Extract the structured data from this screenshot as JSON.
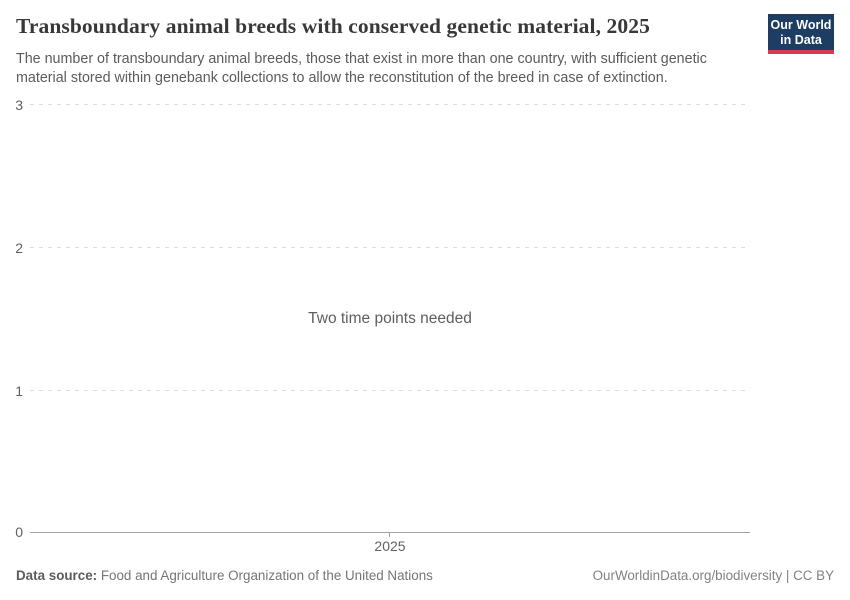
{
  "header": {
    "title": "Transboundary animal breeds with conserved genetic material, 2025",
    "subtitle": "The number of transboundary animal breeds, those that exist in more than one country, with sufficient genetic material stored within genebank collections to allow the reconstitution of the breed in case of extinction."
  },
  "logo": {
    "line1": "Our World",
    "line2": "in Data",
    "bg_color": "#1d3d63",
    "accent_color": "#d73c50"
  },
  "chart_data": {
    "type": "line",
    "title": "Transboundary animal breeds with conserved genetic material, 2025",
    "series": [],
    "note": "Two time points needed",
    "x_ticks": [
      "2025"
    ],
    "y_ticks": [
      "0",
      "1",
      "2",
      "3"
    ],
    "ylim": [
      0,
      3
    ],
    "xlabel": "",
    "ylabel": "",
    "grid": "horizontal-dashed",
    "legend_position": "none",
    "grid_color": "#dcdcdc",
    "axis_color": "#a3a3a3"
  },
  "footer": {
    "source_label": "Data source:",
    "source_text": " Food and Agriculture Organization of the United Nations",
    "link_text": "OurWorldinData.org/biodiversity | CC BY"
  }
}
